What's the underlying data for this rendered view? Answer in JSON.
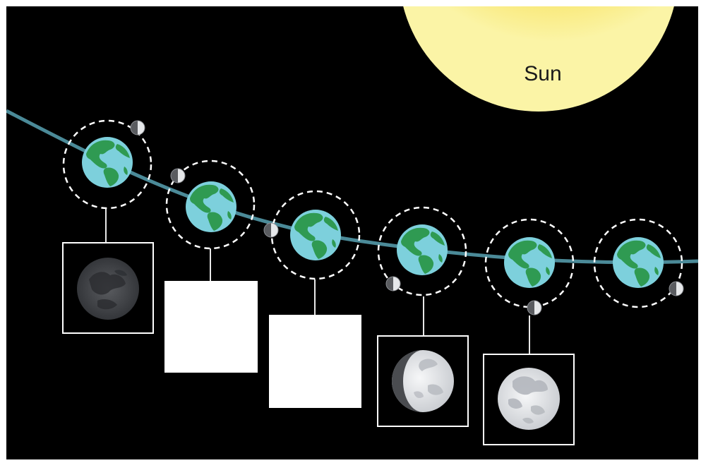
{
  "sun": {
    "label": "Sun"
  },
  "colors": {
    "background": "#000000",
    "orbit_path": "#4b8a98",
    "earth_ocean": "#7dd0dc",
    "earth_land": "#2f9a52",
    "sun_core": "#f2821e",
    "sun_mid": "#f6c23a",
    "sun_edge": "#fbf4a6",
    "moon_light": "#e9ecef",
    "moon_dark": "#4a4c50",
    "blank_box": "#ffffff"
  },
  "stages": [
    {
      "id": 1,
      "moon_side": "upper-right",
      "box": "phase",
      "phase": "new-moon"
    },
    {
      "id": 2,
      "moon_side": "upper-left",
      "box": "blank"
    },
    {
      "id": 3,
      "moon_side": "left",
      "box": "blank"
    },
    {
      "id": 4,
      "moon_side": "lower-left",
      "box": "phase",
      "phase": "waxing-gibbous"
    },
    {
      "id": 5,
      "moon_side": "bottom",
      "box": "phase",
      "phase": "full-moon"
    },
    {
      "id": 6,
      "moon_side": "lower-right",
      "box": "none"
    }
  ]
}
